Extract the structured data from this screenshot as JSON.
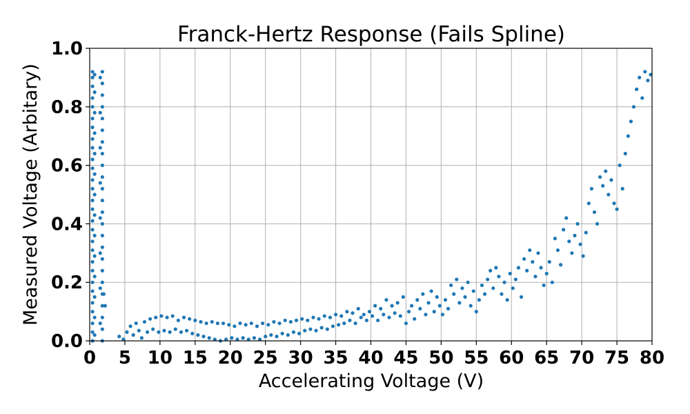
{
  "chart_data": {
    "type": "scatter",
    "title": "Franck-Hertz Response (Fails Spline)",
    "xlabel": "Accelerating Voltage (V)",
    "ylabel": "Measured Voltage (Arbitary)",
    "xlim": [
      0,
      80
    ],
    "ylim": [
      0,
      1.0
    ],
    "xticks": [
      0,
      5,
      10,
      15,
      20,
      25,
      30,
      35,
      40,
      45,
      50,
      55,
      60,
      65,
      70,
      75,
      80
    ],
    "xtick_labels": [
      "0",
      "5",
      "10",
      "15",
      "20",
      "25",
      "30",
      "35",
      "40",
      "45",
      "50",
      "55",
      "60",
      "65",
      "70",
      "75",
      "80"
    ],
    "yticks": [
      0.0,
      0.2,
      0.4,
      0.6,
      0.8,
      1.0
    ],
    "ytick_labels": [
      "0.0",
      "0.2",
      "0.4",
      "0.6",
      "0.8",
      "1.0"
    ],
    "grid": true,
    "marker_color": "#1f77b4",
    "series": [
      {
        "points": [
          [
            0.4,
            0.0
          ],
          [
            0.4,
            0.03
          ],
          [
            0.4,
            0.06
          ],
          [
            0.4,
            0.1
          ],
          [
            0.4,
            0.13
          ],
          [
            0.4,
            0.17
          ],
          [
            0.4,
            0.2
          ],
          [
            0.4,
            0.24
          ],
          [
            0.4,
            0.27
          ],
          [
            0.4,
            0.31
          ],
          [
            0.4,
            0.34
          ],
          [
            0.4,
            0.38
          ],
          [
            0.4,
            0.41
          ],
          [
            0.4,
            0.45
          ],
          [
            0.4,
            0.48
          ],
          [
            0.4,
            0.52
          ],
          [
            0.4,
            0.55
          ],
          [
            0.4,
            0.59
          ],
          [
            0.4,
            0.62
          ],
          [
            0.4,
            0.66
          ],
          [
            0.4,
            0.69
          ],
          [
            0.4,
            0.73
          ],
          [
            0.4,
            0.76
          ],
          [
            0.4,
            0.8
          ],
          [
            0.4,
            0.83
          ],
          [
            0.4,
            0.87
          ],
          [
            0.4,
            0.9
          ],
          [
            0.4,
            0.92
          ],
          [
            0.7,
            0.02
          ],
          [
            0.7,
            0.08
          ],
          [
            0.7,
            0.15
          ],
          [
            0.7,
            0.22
          ],
          [
            0.7,
            0.29
          ],
          [
            0.7,
            0.36
          ],
          [
            0.7,
            0.43
          ],
          [
            0.7,
            0.5
          ],
          [
            0.7,
            0.57
          ],
          [
            0.7,
            0.64
          ],
          [
            0.7,
            0.71
          ],
          [
            0.7,
            0.78
          ],
          [
            0.7,
            0.85
          ],
          [
            0.7,
            0.91
          ],
          [
            1.8,
            0.0
          ],
          [
            1.8,
            0.04
          ],
          [
            1.8,
            0.08
          ],
          [
            1.8,
            0.12
          ],
          [
            1.8,
            0.16
          ],
          [
            1.8,
            0.2
          ],
          [
            1.8,
            0.24
          ],
          [
            1.8,
            0.28
          ],
          [
            1.8,
            0.32
          ],
          [
            1.8,
            0.36
          ],
          [
            1.8,
            0.4
          ],
          [
            1.8,
            0.44
          ],
          [
            1.8,
            0.48
          ],
          [
            1.8,
            0.52
          ],
          [
            1.8,
            0.56
          ],
          [
            1.8,
            0.6
          ],
          [
            1.8,
            0.64
          ],
          [
            1.8,
            0.68
          ],
          [
            1.8,
            0.72
          ],
          [
            1.8,
            0.76
          ],
          [
            1.8,
            0.8
          ],
          [
            1.8,
            0.84
          ],
          [
            1.8,
            0.88
          ],
          [
            1.8,
            0.92
          ],
          [
            1.5,
            0.06
          ],
          [
            1.5,
            0.18
          ],
          [
            1.5,
            0.3
          ],
          [
            1.5,
            0.42
          ],
          [
            1.5,
            0.54
          ],
          [
            1.5,
            0.66
          ],
          [
            1.5,
            0.78
          ],
          [
            1.5,
            0.9
          ],
          [
            2.2,
            0.12
          ],
          [
            2.0,
            0.16
          ],
          [
            4.2,
            0.015
          ],
          [
            4.8,
            0.005
          ],
          [
            5.3,
            0.03
          ],
          [
            5.8,
            0.05
          ],
          [
            6.2,
            0.02
          ],
          [
            6.6,
            0.06
          ],
          [
            7.0,
            0.035
          ],
          [
            7.4,
            0.01
          ],
          [
            7.8,
            0.065
          ],
          [
            8.2,
            0.03
          ],
          [
            8.6,
            0.075
          ],
          [
            9.0,
            0.04
          ],
          [
            9.4,
            0.08
          ],
          [
            9.8,
            0.03
          ],
          [
            10.2,
            0.085
          ],
          [
            10.6,
            0.035
          ],
          [
            11.0,
            0.08
          ],
          [
            11.4,
            0.03
          ],
          [
            11.8,
            0.085
          ],
          [
            12.2,
            0.04
          ],
          [
            12.6,
            0.07
          ],
          [
            13.0,
            0.03
          ],
          [
            13.4,
            0.08
          ],
          [
            13.8,
            0.035
          ],
          [
            14.2,
            0.075
          ],
          [
            14.6,
            0.025
          ],
          [
            15.0,
            0.07
          ],
          [
            15.4,
            0.02
          ],
          [
            15.8,
            0.065
          ],
          [
            16.2,
            0.015
          ],
          [
            16.6,
            0.06
          ],
          [
            17.0,
            0.01
          ],
          [
            17.4,
            0.065
          ],
          [
            17.8,
            0.005
          ],
          [
            18.2,
            0.06
          ],
          [
            18.6,
            0.0
          ],
          [
            19.0,
            0.06
          ],
          [
            19.4,
            0.005
          ],
          [
            19.8,
            0.055
          ],
          [
            20.2,
            0.01
          ],
          [
            20.6,
            0.05
          ],
          [
            21.0,
            0.005
          ],
          [
            21.4,
            0.06
          ],
          [
            21.8,
            0.01
          ],
          [
            22.2,
            0.055
          ],
          [
            22.6,
            0.005
          ],
          [
            23.0,
            0.06
          ],
          [
            23.4,
            0.01
          ],
          [
            23.8,
            0.05
          ],
          [
            24.2,
            0.005
          ],
          [
            24.6,
            0.06
          ],
          [
            25.0,
            0.015
          ],
          [
            25.4,
            0.055
          ],
          [
            25.8,
            0.02
          ],
          [
            26.2,
            0.065
          ],
          [
            26.6,
            0.015
          ],
          [
            27.0,
            0.06
          ],
          [
            27.4,
            0.025
          ],
          [
            27.8,
            0.07
          ],
          [
            28.2,
            0.02
          ],
          [
            28.6,
            0.065
          ],
          [
            29.0,
            0.03
          ],
          [
            29.4,
            0.07
          ],
          [
            29.8,
            0.025
          ],
          [
            30.2,
            0.075
          ],
          [
            30.6,
            0.035
          ],
          [
            31.0,
            0.07
          ],
          [
            31.4,
            0.04
          ],
          [
            31.8,
            0.08
          ],
          [
            32.2,
            0.035
          ],
          [
            32.6,
            0.075
          ],
          [
            33.0,
            0.045
          ],
          [
            33.4,
            0.085
          ],
          [
            33.8,
            0.04
          ],
          [
            34.2,
            0.08
          ],
          [
            34.6,
            0.05
          ],
          [
            35.0,
            0.09
          ],
          [
            35.4,
            0.055
          ],
          [
            35.8,
            0.085
          ],
          [
            36.2,
            0.06
          ],
          [
            36.6,
            0.1
          ],
          [
            37.0,
            0.07
          ],
          [
            37.4,
            0.095
          ],
          [
            37.8,
            0.06
          ],
          [
            38.2,
            0.11
          ],
          [
            38.6,
            0.08
          ],
          [
            39.0,
            0.09
          ],
          [
            39.4,
            0.07
          ],
          [
            39.8,
            0.1
          ],
          [
            40.2,
            0.085
          ],
          [
            40.6,
            0.12
          ],
          [
            41.0,
            0.07
          ],
          [
            41.4,
            0.11
          ],
          [
            41.8,
            0.09
          ],
          [
            42.2,
            0.14
          ],
          [
            42.6,
            0.08
          ],
          [
            43.0,
            0.12
          ],
          [
            43.4,
            0.095
          ],
          [
            43.8,
            0.13
          ],
          [
            44.2,
            0.085
          ],
          [
            44.6,
            0.15
          ],
          [
            45.0,
            0.06
          ],
          [
            45.4,
            0.1
          ],
          [
            45.8,
            0.12
          ],
          [
            46.2,
            0.075
          ],
          [
            46.6,
            0.14
          ],
          [
            47.0,
            0.11
          ],
          [
            47.4,
            0.16
          ],
          [
            47.8,
            0.09
          ],
          [
            48.2,
            0.13
          ],
          [
            48.6,
            0.17
          ],
          [
            49.0,
            0.1
          ],
          [
            49.4,
            0.15
          ],
          [
            49.8,
            0.12
          ],
          [
            50.2,
            0.09
          ],
          [
            50.6,
            0.14
          ],
          [
            51.0,
            0.11
          ],
          [
            51.4,
            0.19
          ],
          [
            51.8,
            0.16
          ],
          [
            52.2,
            0.21
          ],
          [
            52.6,
            0.13
          ],
          [
            53.0,
            0.18
          ],
          [
            53.4,
            0.15
          ],
          [
            53.8,
            0.2
          ],
          [
            54.2,
            0.12
          ],
          [
            54.6,
            0.17
          ],
          [
            55.0,
            0.1
          ],
          [
            55.4,
            0.14
          ],
          [
            55.8,
            0.19
          ],
          [
            56.2,
            0.16
          ],
          [
            56.6,
            0.21
          ],
          [
            57.0,
            0.24
          ],
          [
            57.4,
            0.18
          ],
          [
            57.8,
            0.25
          ],
          [
            58.2,
            0.22
          ],
          [
            58.6,
            0.16
          ],
          [
            59.0,
            0.2
          ],
          [
            59.4,
            0.14
          ],
          [
            59.8,
            0.23
          ],
          [
            60.2,
            0.18
          ],
          [
            60.6,
            0.21
          ],
          [
            61.0,
            0.25
          ],
          [
            61.4,
            0.15
          ],
          [
            61.8,
            0.28
          ],
          [
            62.2,
            0.24
          ],
          [
            62.6,
            0.31
          ],
          [
            63.0,
            0.27
          ],
          [
            63.4,
            0.22
          ],
          [
            63.8,
            0.3
          ],
          [
            64.2,
            0.25
          ],
          [
            64.6,
            0.19
          ],
          [
            65.0,
            0.23
          ],
          [
            65.4,
            0.27
          ],
          [
            65.8,
            0.2
          ],
          [
            66.2,
            0.35
          ],
          [
            66.6,
            0.31
          ],
          [
            67.0,
            0.26
          ],
          [
            67.4,
            0.38
          ],
          [
            67.8,
            0.42
          ],
          [
            68.2,
            0.34
          ],
          [
            68.6,
            0.3
          ],
          [
            69.0,
            0.36
          ],
          [
            69.4,
            0.4
          ],
          [
            69.8,
            0.33
          ],
          [
            70.2,
            0.29
          ],
          [
            70.6,
            0.37
          ],
          [
            71.0,
            0.47
          ],
          [
            71.4,
            0.52
          ],
          [
            71.8,
            0.44
          ],
          [
            72.2,
            0.4
          ],
          [
            72.6,
            0.56
          ],
          [
            73.0,
            0.53
          ],
          [
            73.4,
            0.58
          ],
          [
            73.8,
            0.5
          ],
          [
            74.2,
            0.55
          ],
          [
            74.6,
            0.47
          ],
          [
            75.0,
            0.45
          ],
          [
            75.4,
            0.6
          ],
          [
            75.8,
            0.52
          ],
          [
            76.2,
            0.64
          ],
          [
            76.6,
            0.7
          ],
          [
            77.0,
            0.75
          ],
          [
            77.4,
            0.8
          ],
          [
            77.8,
            0.86
          ],
          [
            78.2,
            0.9
          ],
          [
            78.6,
            0.83
          ],
          [
            79.0,
            0.92
          ],
          [
            79.4,
            0.89
          ],
          [
            79.8,
            0.91
          ]
        ]
      }
    ]
  }
}
